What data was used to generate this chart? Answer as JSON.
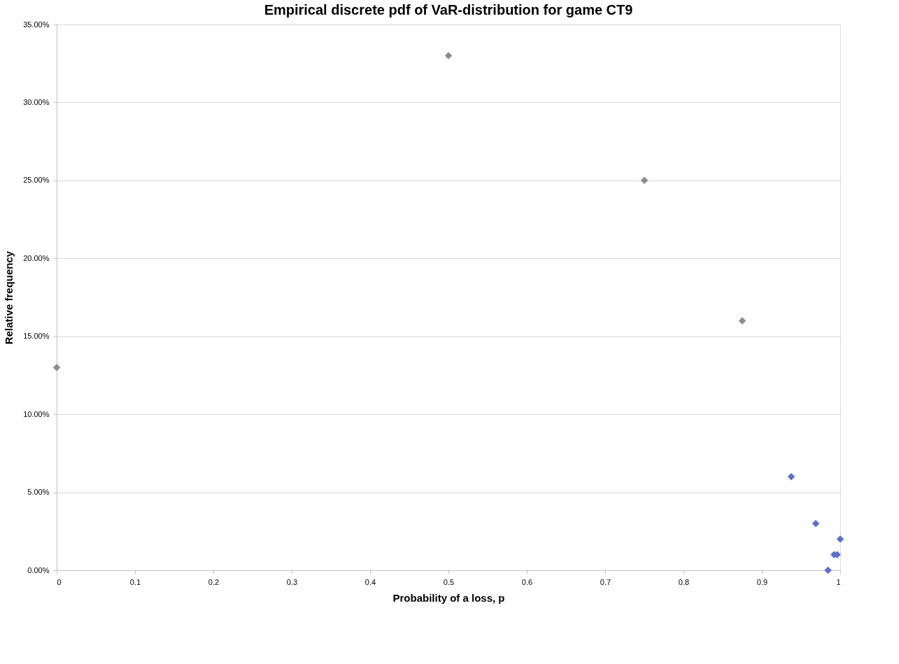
{
  "chart_data": {
    "type": "scatter",
    "title": "Empirical discrete pdf of VaR-distribution for game CT9",
    "xlabel": "Probability of a loss, p",
    "ylabel": "Relative frequency",
    "x": [
      0,
      0.5,
      0.75,
      0.875,
      0.9375,
      0.96875,
      0.984375,
      0.9921875,
      0.99609375,
      1
    ],
    "series": [
      {
        "values": [
          13,
          33,
          25,
          16,
          6,
          3,
          0,
          1,
          1,
          2
        ],
        "colors": [
          "#8c8c8c",
          "#8c8c8c",
          "#8c8c8c",
          "#8c8c8c",
          "#5b6fd0",
          "#5b6fd0",
          "#5b6fd0",
          "#5b6fd0",
          "#5b6fd0",
          "#5b6fd0"
        ]
      }
    ],
    "xlim": [
      0,
      1
    ],
    "xticks": [
      0,
      0.1,
      0.2,
      0.3,
      0.4,
      0.5,
      0.6,
      0.7,
      0.8,
      0.9,
      1
    ],
    "ylim": [
      0,
      35
    ],
    "yticks": [
      {
        "value": 0,
        "label": "0.00%"
      },
      {
        "value": 5,
        "label": "5.00%"
      },
      {
        "value": 10,
        "label": "10.00%"
      },
      {
        "value": 15,
        "label": "15.00%"
      },
      {
        "value": 20,
        "label": "20.00%"
      },
      {
        "value": 25,
        "label": "25.00%"
      },
      {
        "value": 30,
        "label": "30.00%"
      },
      {
        "value": 35,
        "label": "35.00%"
      }
    ],
    "grid": "y",
    "marker": "diamond"
  }
}
